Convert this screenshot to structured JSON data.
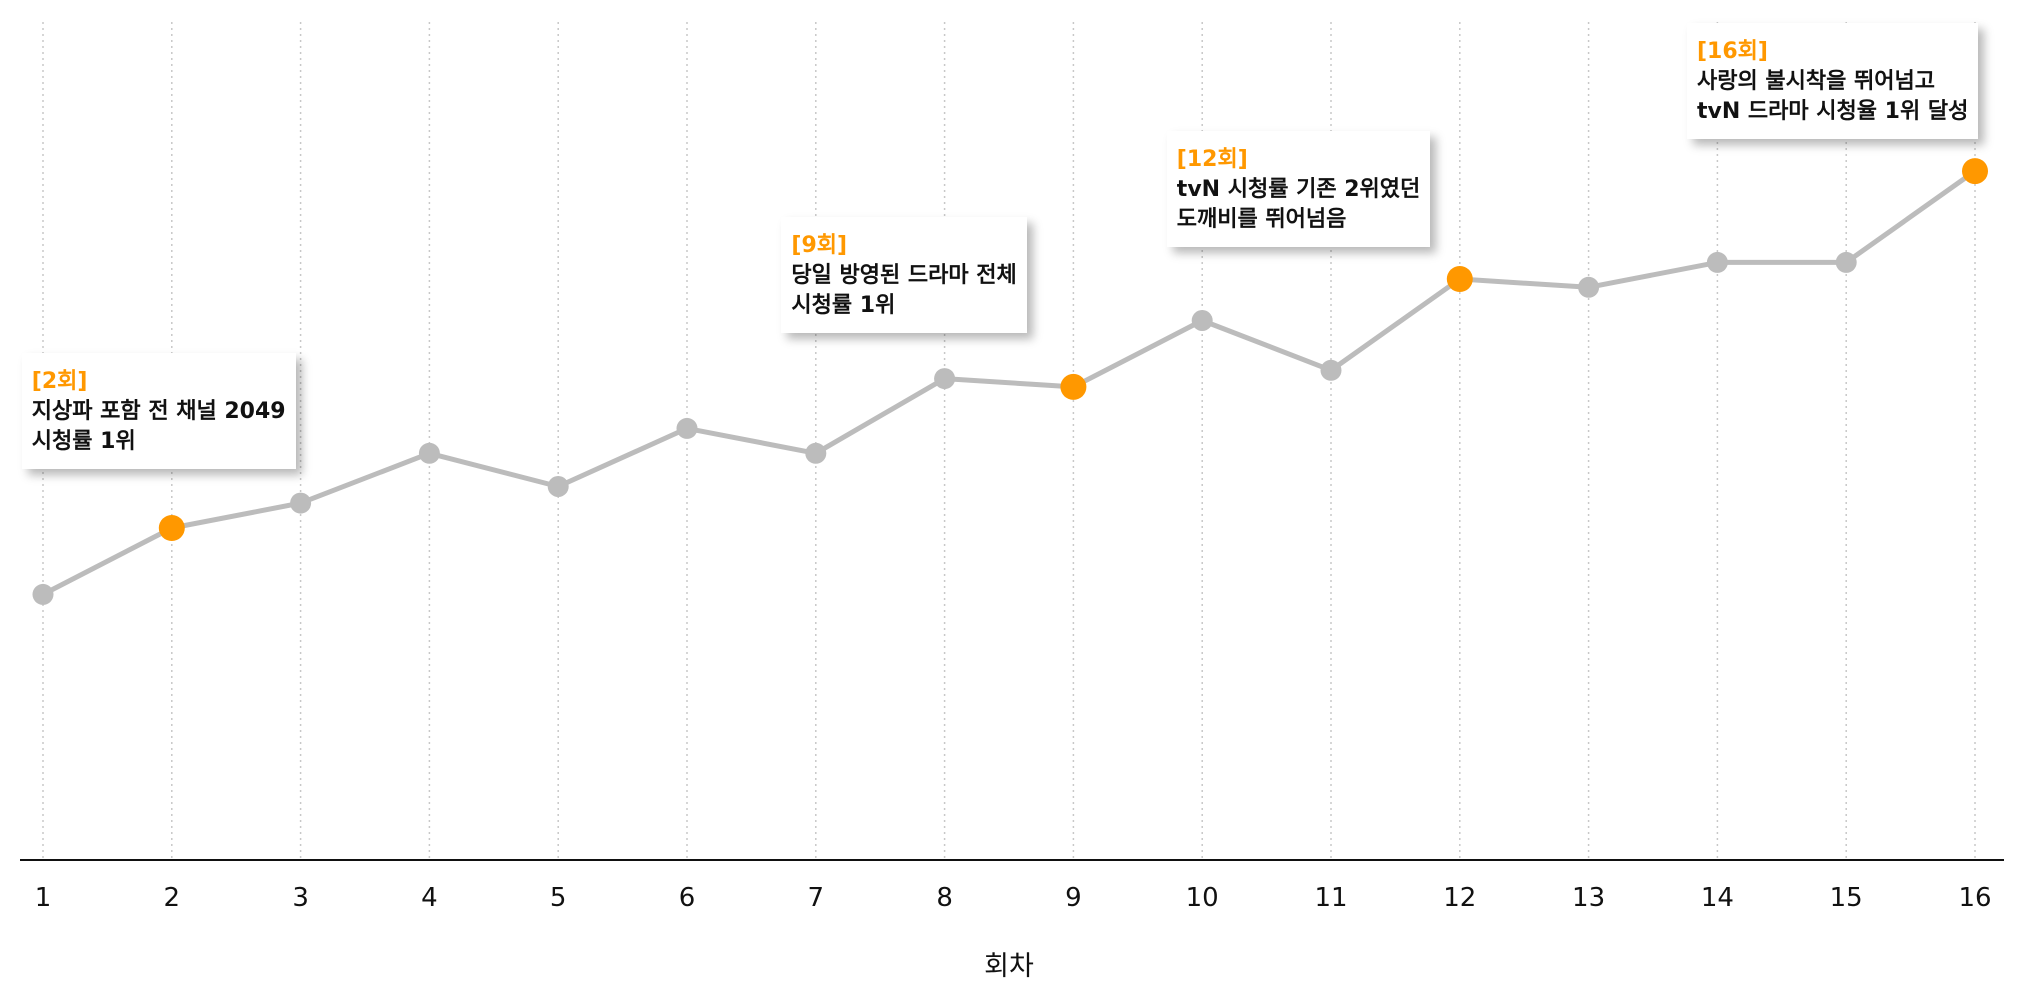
{
  "chart_data": {
    "type": "line",
    "x": [
      1,
      2,
      3,
      4,
      5,
      6,
      7,
      8,
      9,
      10,
      11,
      12,
      13,
      14,
      15,
      16
    ],
    "values": [
      2.7,
      3.5,
      3.8,
      4.4,
      4.0,
      4.7,
      4.4,
      5.3,
      5.2,
      6.0,
      5.4,
      6.5,
      6.4,
      6.7,
      6.7,
      7.8
    ],
    "highlighted_x": [
      2,
      9,
      12,
      16
    ],
    "xlabel": "회차",
    "ylabel": "",
    "ylim": [
      -0.5,
      9.5
    ],
    "grid": "vertical dotted",
    "colors": {
      "line": "#bcbcbc",
      "point": "#bcbcbc",
      "highlight": "#ff9800",
      "grid": "#c8c8c8",
      "axis": "#111111"
    },
    "annotations": [
      {
        "x": 2,
        "episode": "[2회]",
        "lines": [
          "지상파 포함 전 채널 2049",
          "시청률 1위"
        ]
      },
      {
        "x": 9,
        "episode": "[9회]",
        "lines": [
          "당일 방영된 드라마 전체",
          "시청률 1위"
        ]
      },
      {
        "x": 12,
        "episode": "[12회]",
        "lines": [
          "tvN 시청률 기존 2위였던",
          "도깨비를 뛰어넘음"
        ]
      },
      {
        "x": 16,
        "episode": "[16회]",
        "lines": [
          "사랑의 불시착을 뛰어넘고",
          "tvN 드라마 시청율 1위 달성"
        ]
      }
    ]
  }
}
